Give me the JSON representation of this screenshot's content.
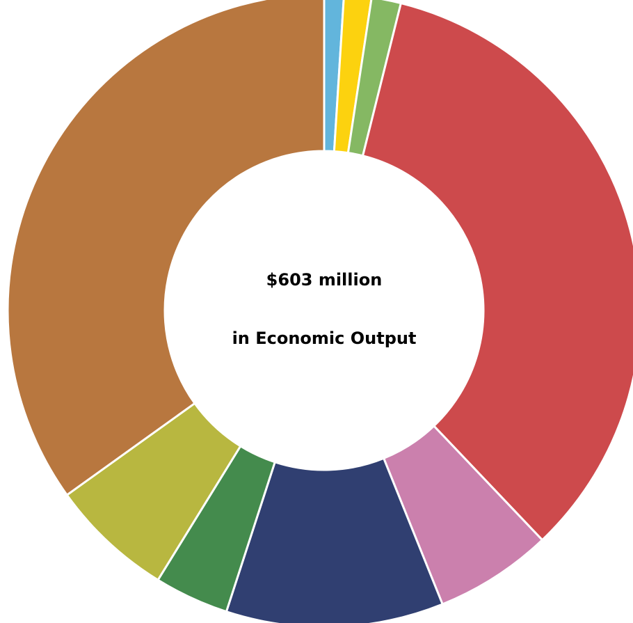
{
  "chart_data": {
    "type": "pie",
    "variant": "donut",
    "unit": "percent of total",
    "center_text": {
      "line1": "$603 million",
      "line2": "in Economic Output"
    },
    "slices": [
      {
        "value": 1.0,
        "color": "#62b5dc"
      },
      {
        "value": 1.4,
        "color": "#fcd20f"
      },
      {
        "value": 1.5,
        "color": "#85b863"
      },
      {
        "value": 34.0,
        "color": "#cd4a4c"
      },
      {
        "value": 6.0,
        "color": "#cb80ad"
      },
      {
        "value": 11.1,
        "color": "#303f71"
      },
      {
        "value": 3.8,
        "color": "#448b4d"
      },
      {
        "value": 6.3,
        "color": "#b8b740"
      },
      {
        "value": 34.9,
        "color": "#b8773f"
      }
    ],
    "legend": "none"
  }
}
